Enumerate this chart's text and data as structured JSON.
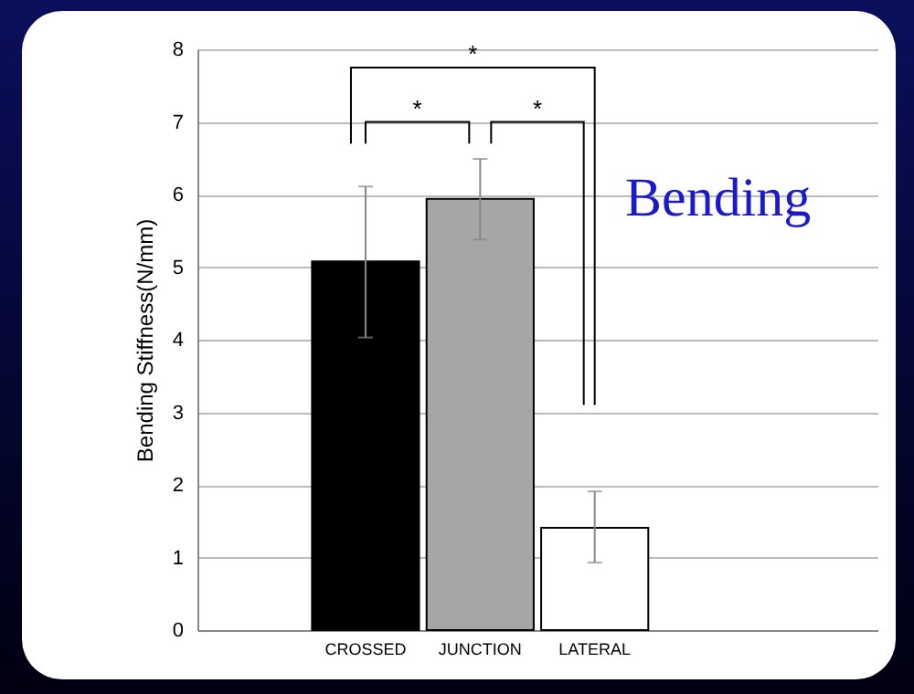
{
  "chart_data": {
    "type": "bar",
    "ylabel": "Bending Stiffness(N/mm)",
    "categories": [
      null,
      "CROSSED",
      "JUNCTION",
      "LATERAL",
      null,
      null
    ],
    "values": [
      null,
      5.08,
      5.94,
      1.41,
      null,
      null
    ],
    "colors": [
      null,
      "#000000",
      "#a6a6a6",
      "#ffffff",
      null,
      null
    ],
    "errors": [
      null,
      [
        4.03,
        6.11
      ],
      [
        5.38,
        6.49
      ],
      [
        0.93,
        1.91
      ],
      null,
      null
    ],
    "ylim": [
      0,
      8
    ],
    "yticks": [
      0,
      1,
      2,
      3,
      4,
      5,
      6,
      7,
      8
    ],
    "grid": "y",
    "annotations": [
      "*",
      "*",
      "*",
      "Bending"
    ]
  }
}
